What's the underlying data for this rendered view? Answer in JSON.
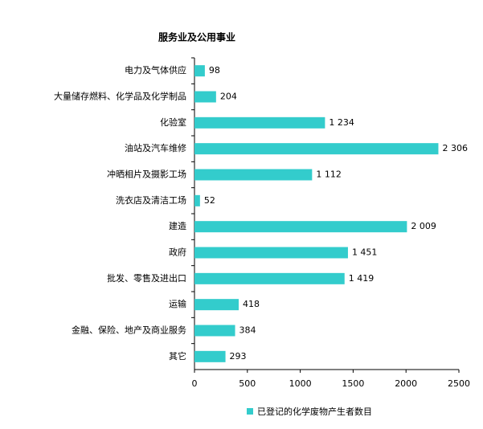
{
  "chart_data": {
    "type": "hbar",
    "title": "服务业及公用事业",
    "categories": [
      "电力及气体供应",
      "大量储存燃料、化学品及化学制品",
      "化验室",
      "油站及汽车维修",
      "冲晒相片及摄影工场",
      "洗衣店及清洁工场",
      "建造",
      "政府",
      "批发、零售及进出口",
      "运输",
      "金融、保险、地产及商业服务",
      "其它"
    ],
    "series": [
      {
        "name": "已登记的化学废物产生者数目",
        "color": "#33cccc",
        "values": [
          98,
          204,
          1234,
          2306,
          1112,
          52,
          2009,
          1451,
          1419,
          418,
          384,
          293
        ],
        "value_labels": [
          "98",
          "204",
          "1 234",
          "2 306",
          "1 112",
          "52",
          "2 009",
          "1 451",
          "1 419",
          "418",
          "384",
          "293"
        ]
      }
    ],
    "xlim": [
      0,
      2500
    ],
    "xticks": [
      0,
      500,
      1000,
      1500,
      2000,
      2500
    ],
    "legend": "bottom"
  }
}
